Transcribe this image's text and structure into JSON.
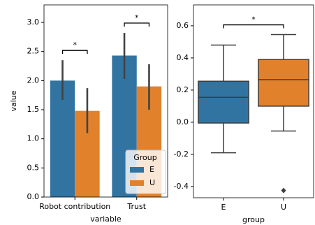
{
  "chart_data": [
    {
      "type": "bar",
      "xlabel": "variable",
      "ylabel": "value",
      "categories": [
        "Robot contribution",
        "Trust"
      ],
      "series": [
        {
          "name": "E",
          "color": "#3274a1",
          "values": [
            2.0,
            2.43
          ],
          "ci_low": [
            1.67,
            2.03
          ],
          "ci_high": [
            2.35,
            2.82
          ]
        },
        {
          "name": "U",
          "color": "#e1812c",
          "values": [
            1.48,
            1.9
          ],
          "ci_low": [
            1.1,
            1.5
          ],
          "ci_high": [
            1.87,
            2.28
          ]
        }
      ],
      "ylim": [
        0,
        3.3
      ],
      "yticks": [
        {
          "value": 0,
          "label": "0.0"
        },
        {
          "value": 0.5,
          "label": "0.5"
        },
        {
          "value": 1,
          "label": "1.0"
        },
        {
          "value": 1.5,
          "label": "1.5"
        },
        {
          "value": 2,
          "label": "2.0"
        },
        {
          "value": 2.5,
          "label": "2.5"
        },
        {
          "value": 3,
          "label": "3.0"
        }
      ],
      "legend_title": "Group",
      "legend": "lower right",
      "annotations": [
        "*",
        "*"
      ]
    },
    {
      "type": "box",
      "xlabel": "group",
      "categories": [
        "E",
        "U"
      ],
      "colors": [
        "#3274a1",
        "#e1812c"
      ],
      "boxes": [
        {
          "whislo": -0.19,
          "q1": -0.005,
          "med": 0.155,
          "q3": 0.255,
          "whishi": 0.48,
          "fliers": []
        },
        {
          "whislo": -0.055,
          "q1": 0.1,
          "med": 0.265,
          "q3": 0.39,
          "whishi": 0.545,
          "fliers": [
            -0.425
          ]
        }
      ],
      "ylim": [
        -0.47,
        0.73
      ],
      "yticks": [
        {
          "value": -0.4,
          "label": "-0.4"
        },
        {
          "value": -0.2,
          "label": "-0.2"
        },
        {
          "value": 0,
          "label": "0.0"
        },
        {
          "value": 0.2,
          "label": "0.2"
        },
        {
          "value": 0.4,
          "label": "0.4"
        },
        {
          "value": 0.6,
          "label": "0.6"
        }
      ],
      "annotations": [
        "*"
      ]
    }
  ]
}
